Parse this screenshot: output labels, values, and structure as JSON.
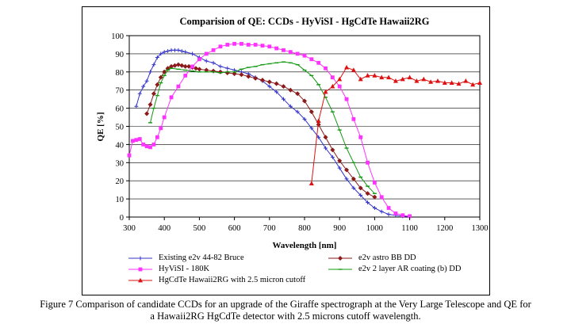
{
  "chart_data": {
    "type": "line",
    "title": "Comparision of QE:  CCDs - HyViSI - HgCdTe Hawaii2RG",
    "xlabel": "Wavelength [nm]",
    "ylabel": "QE [%]",
    "xlim": [
      300,
      1300
    ],
    "ylim": [
      0,
      100
    ],
    "xticks": [
      "300",
      "400",
      "500",
      "600",
      "700",
      "800",
      "900",
      "1000",
      "1100",
      "1200",
      "1300"
    ],
    "yticks": [
      "0",
      "10",
      "20",
      "30",
      "40",
      "50",
      "60",
      "70",
      "80",
      "90",
      "100"
    ],
    "grid": "horizontal",
    "legend_position": "bottom",
    "series": [
      {
        "name": "Existing e2v 44-82 Bruce",
        "color": "#3333cc",
        "marker": "plus",
        "x": [
          320,
          330,
          340,
          350,
          360,
          370,
          380,
          390,
          400,
          410,
          420,
          430,
          440,
          450,
          460,
          480,
          500,
          520,
          540,
          560,
          580,
          600,
          620,
          640,
          660,
          680,
          700,
          720,
          740,
          760,
          780,
          800,
          820,
          840,
          860,
          880,
          900,
          920,
          940,
          960,
          980,
          1000,
          1020,
          1040,
          1060,
          1080,
          1100
        ],
        "y": [
          61,
          68,
          72,
          75,
          80,
          84,
          88,
          90,
          91,
          91.5,
          92,
          92,
          92,
          91.5,
          91,
          90,
          88,
          86,
          85,
          83,
          82,
          81,
          80,
          79,
          77,
          75,
          72,
          69,
          65,
          61,
          58,
          54,
          49,
          44,
          38,
          33,
          27,
          21,
          16,
          12,
          8,
          5,
          3,
          1.5,
          1,
          0.5,
          0.2
        ]
      },
      {
        "name": "e2v astro BB DD",
        "color": "#8b1a1a",
        "marker": "diamond",
        "x": [
          350,
          360,
          370,
          380,
          390,
          400,
          410,
          420,
          430,
          440,
          450,
          460,
          470,
          480,
          490,
          500,
          520,
          540,
          560,
          580,
          600,
          620,
          640,
          660,
          680,
          700,
          720,
          740,
          760,
          780,
          800,
          820,
          840,
          860,
          880,
          900,
          920,
          940,
          960,
          980,
          1000
        ],
        "y": [
          57,
          62,
          68,
          73,
          77,
          80,
          82,
          83,
          83.5,
          84,
          83.5,
          83,
          83,
          82.5,
          82,
          81.5,
          81,
          80.5,
          80,
          79.5,
          79,
          78.5,
          77.5,
          76.5,
          75.5,
          74.5,
          73.5,
          72,
          70,
          68,
          64,
          58,
          51,
          44,
          37,
          31,
          26,
          21,
          16,
          13,
          11
        ]
      },
      {
        "name": "HyViSI - 180K",
        "color": "#ff33ff",
        "marker": "square",
        "x": [
          300,
          310,
          320,
          330,
          340,
          350,
          360,
          370,
          380,
          390,
          400,
          420,
          440,
          460,
          480,
          500,
          520,
          540,
          560,
          580,
          600,
          620,
          640,
          660,
          680,
          700,
          720,
          740,
          760,
          780,
          800,
          820,
          840,
          860,
          880,
          900,
          920,
          940,
          960,
          980,
          1000,
          1020,
          1040,
          1060,
          1080,
          1100
        ],
        "y": [
          34,
          42,
          42.5,
          43,
          40,
          39,
          38.5,
          40,
          44,
          49,
          55,
          66,
          72,
          78,
          83,
          87,
          90,
          92,
          94,
          95,
          95.5,
          95.5,
          95,
          95,
          94.5,
          94,
          93,
          92,
          91,
          90,
          89,
          87,
          85,
          82,
          77,
          72,
          65,
          54,
          44,
          30,
          19,
          11,
          5,
          2,
          1,
          0.5
        ]
      },
      {
        "name": "e2v 2 layer AR coating (b)  DD",
        "color": "#119911",
        "marker": "dash",
        "x": [
          360,
          370,
          380,
          390,
          400,
          410,
          420,
          440,
          460,
          480,
          500,
          520,
          540,
          560,
          580,
          600,
          620,
          640,
          660,
          680,
          700,
          720,
          740,
          760,
          780,
          800,
          820,
          840,
          860,
          880,
          900,
          920,
          940,
          960,
          980,
          1000
        ],
        "y": [
          52,
          60,
          67,
          74,
          78,
          81,
          82,
          81.5,
          81,
          80.5,
          80,
          80,
          80,
          79.5,
          80,
          80,
          81.5,
          82.5,
          83,
          84,
          84.5,
          85,
          85.5,
          85,
          84,
          81,
          78,
          73,
          66,
          58,
          48,
          38,
          30,
          22,
          17,
          13
        ]
      },
      {
        "name": "HgCdTe Hawaii2RG with 2.5 micron cutoff",
        "color": "#dd1111",
        "marker": "triangle",
        "x": [
          820,
          840,
          860,
          880,
          900,
          920,
          940,
          960,
          980,
          1000,
          1020,
          1040,
          1060,
          1080,
          1100,
          1120,
          1140,
          1160,
          1180,
          1200,
          1220,
          1240,
          1260,
          1280,
          1300
        ],
        "y": [
          18.5,
          53,
          69,
          72,
          76,
          82.5,
          81,
          76,
          78,
          78,
          77,
          77,
          75,
          76,
          77,
          75,
          76,
          74.5,
          75,
          74,
          74,
          73.5,
          75,
          73,
          74
        ]
      }
    ]
  },
  "legend_entries": [
    {
      "label": "Existing e2v 44-82 Bruce",
      "series": 0
    },
    {
      "label": "e2v astro BB DD",
      "series": 1
    },
    {
      "label": "HyViSI - 180K",
      "series": 2
    },
    {
      "label": "e2v 2 layer AR coating (b)  DD",
      "series": 3
    },
    {
      "label": "HgCdTe Hawaii2RG with 2.5 micron cutoff",
      "series": 4
    }
  ],
  "caption": {
    "line1": "Figure 7 Comparison of candidate CCDs for an upgrade of the Giraffe spectrograph at the Very Large Telescope and QE for",
    "line2": "a Hawaii2RG HgCdTe detector with 2.5 microns cutoff wavelength."
  }
}
